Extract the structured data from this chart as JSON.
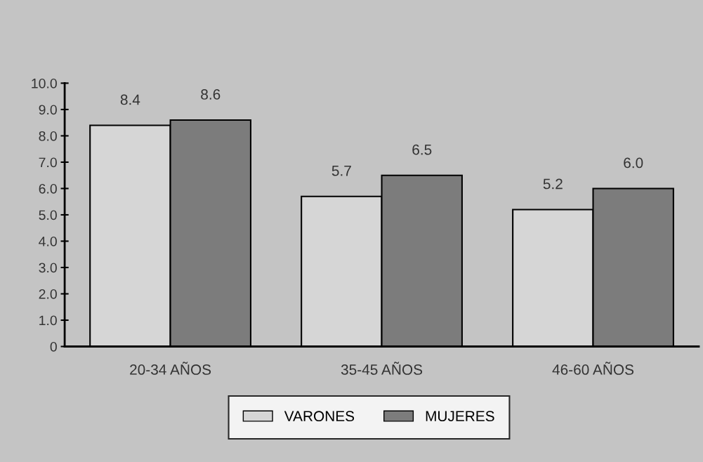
{
  "chart_data": {
    "type": "bar",
    "categories": [
      "20-34 AÑOS",
      "35-45 AÑOS",
      "46-60 AÑOS"
    ],
    "series": [
      {
        "name": "VARONES",
        "color": "#d6d6d6",
        "values": [
          8.4,
          5.7,
          5.2
        ],
        "value_labels": [
          "8.4",
          "5.7",
          "5.2"
        ]
      },
      {
        "name": "MUJERES",
        "color": "#7c7c7c",
        "values": [
          8.6,
          6.5,
          6.0
        ],
        "value_labels": [
          "8.6",
          "6.5",
          "6.0"
        ]
      }
    ],
    "ylim": [
      0,
      10
    ],
    "yticks": [
      0,
      {
        "value": 1,
        "label": "1.0"
      },
      {
        "value": 2,
        "label": "2.0"
      },
      {
        "value": 3,
        "label": "3.0"
      },
      {
        "value": 4,
        "label": "4.0"
      },
      {
        "value": 5,
        "label": "5.0"
      },
      {
        "value": 6,
        "label": "6.0"
      },
      {
        "value": 7,
        "label": "7.0"
      },
      {
        "value": 8,
        "label": "8.0"
      },
      {
        "value": 9,
        "label": "9.0"
      },
      {
        "value": 10,
        "label": "10.0"
      }
    ],
    "grid": false,
    "legend": "bottom"
  }
}
